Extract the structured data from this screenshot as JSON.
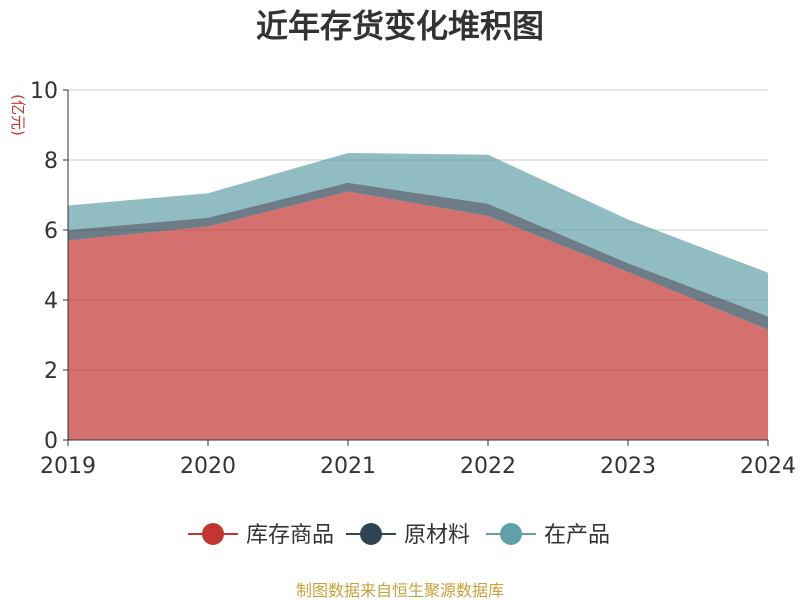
{
  "chart_data": {
    "type": "area",
    "stacked": true,
    "title": "近年存货变化堆积图",
    "ylabel": "(亿元)",
    "categories": [
      "2019",
      "2020",
      "2021",
      "2022",
      "2023",
      "2024"
    ],
    "ylim": [
      0,
      10
    ],
    "yticks": [
      0,
      2,
      4,
      6,
      8,
      10
    ],
    "grid": true,
    "legend_position": "bottom",
    "series": [
      {
        "name": "库存商品",
        "color": "#c23531",
        "values": [
          5.7,
          6.1,
          7.1,
          6.4,
          4.8,
          3.15
        ]
      },
      {
        "name": "原材料",
        "color": "#2f4554",
        "values": [
          0.3,
          0.25,
          0.25,
          0.35,
          0.25,
          0.38
        ]
      },
      {
        "name": "在产品",
        "color": "#61a0a8",
        "values": [
          0.7,
          0.7,
          0.85,
          1.4,
          1.25,
          1.25
        ]
      }
    ]
  },
  "footer": {
    "source": "制图数据来自恒生聚源数据库"
  },
  "colors": {
    "title": "#333333",
    "axis": "#333333",
    "ylabel": "#c23531",
    "footer": "#c8a23c",
    "grid": "#cccccc"
  }
}
